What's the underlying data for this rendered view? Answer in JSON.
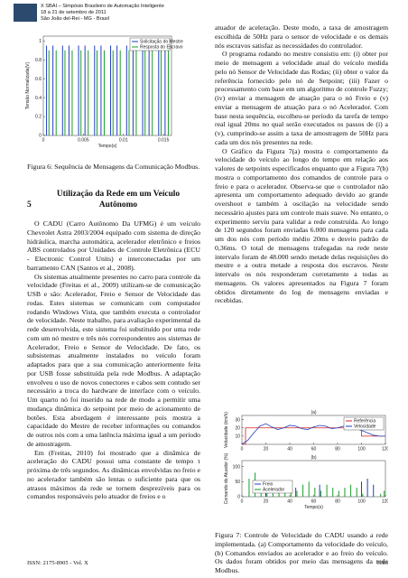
{
  "header": {
    "lines": [
      "X SBAI – Simpósio Brasileiro de Automação Inteligente",
      "18 a 21 de setembro de 2011",
      "São João del-Rei - MG - Brasil"
    ]
  },
  "figure_6": {
    "type": "stem",
    "xlabel": "Tempo(s)",
    "ylabel": "Tensão Normalizada(V)",
    "xlim": [
      0,
      0.016
    ],
    "xticks": [
      0,
      0.005,
      0.01,
      0.015
    ],
    "ylim": [
      0,
      1.05
    ],
    "yticks": [
      0,
      0.2,
      0.4,
      0.6,
      0.8,
      1
    ],
    "legend": "upper right",
    "series": [
      {
        "name": "Solicitação do Mestre",
        "color": "#1f3fbf",
        "x": [
          0.0004,
          0.0012,
          0.0024,
          0.0032,
          0.0044,
          0.0052,
          0.0064,
          0.0072,
          0.0084,
          0.0092,
          0.0104,
          0.0112,
          0.0124,
          0.0132,
          0.0144,
          0.0152
        ],
        "values": [
          0.95,
          0.95,
          0.95,
          0.95,
          0.95,
          0.95,
          0.95,
          0.95,
          0.95,
          0.95,
          0.95,
          0.95,
          0.95,
          0.95,
          0.95,
          0.95
        ]
      },
      {
        "name": "Resposta do Escravo",
        "color": "#1a9e2a",
        "x": [
          0.0007,
          0.0016,
          0.0027,
          0.0036,
          0.0047,
          0.0056,
          0.0067,
          0.0076,
          0.0087,
          0.0096,
          0.0107,
          0.0116,
          0.0127,
          0.0136,
          0.0147,
          0.0156
        ],
        "values": [
          0.9,
          0.9,
          0.9,
          0.9,
          0.9,
          0.9,
          0.9,
          0.9,
          0.9,
          0.9,
          0.9,
          0.9,
          0.9,
          0.9,
          0.9,
          0.9
        ]
      }
    ],
    "caption": "Figura 6: Sequência de Mensagens da Comunicação Modbus."
  },
  "section": {
    "number": "5",
    "title": "Utilização da Rede em um Veículo Autônomo"
  },
  "left_column": {
    "paragraphs": [
      "O CADU (Carro Autônomo Da UFMG) é um veículo Chevrolet Astra 2003/2004 equipado com sistema de direção hidráulica, marcha automática, acelerador eletrônico e freios ABS controlados por Unidades de Controle Eletrônica (ECU - Electronic Control Units) e interconectadas por um barramento CAN (Santos et al., 2008).",
      "Os sistemas atualmente presentes no carro para controle da velocidade (Freitas et al., 2009) utilizam-se de comunicação USB e são: Acelerador, Freio e Sensor de Velocidade das rodas. Estes sistemas se comunicam com computador rodando Windows Vista, que também executa o controlador de velocidade. Neste trabalho, para avaliação experimental da rede desenvolvida, este sistema foi substituído por uma rede com um nó mestre e três nós correspondentes aos sistemas de Acelerador, Freio e Sensor de Velocidade. De fato, os subsistemas atualmente instalados no veículo foram adaptados para que a sua comunicação anteriormente feita por USB fosse substituída pela rede Modbus. A adaptação envolveu o uso de novos conectores e cabos sem contudo ser necessário a troca do hardware de interface com o veículo. Um quarto nó foi inserido na rede de modo a permitir uma mudança dinâmica do setpoint por meio de acionamento de botões. Esta abordagem é interessante pois mostra a capacidade do Mestre de receber informações ou comandos de outros nós com a uma latência máxima igual a um período de amostragem.",
      "Em (Freitas, 2010) foi mostrado que a dinâmica de aceleração do CADU possui uma constante de tempo τ próxima de três segundos. As dinâmicas envolvidas no freio e no acelerador também são lentas o suficiente para que os atrasos máximos da rede se tornem desprezíveis para os comandos responsáveis pelo atuador de freios e o"
    ]
  },
  "right_column": {
    "paragraphs": [
      "atuador de aceleração. Deste modo, a taxa de amostragem escolhida de 50Hz para o sensor de velocidade e os demais nós escravos satisfaz as necessidades do controlador.",
      "O programa rodando no mestre consistiu em: (i) obter por meio de mensagem a velocidade atual do veículo medida pelo nó Sensor de Velocidade das Rodas; (ii) obter o valor da referência fornecido pelo nó de Setpoint; (iii) Fazer o processamento com base em um algoritmo de controle Fuzzy; (iv) enviar a mensagem de atuação para o nó Freio e (v) enviar a mensagem de atuação para o nó Acelerador. Com base nesta sequência, escolheu-se período da tarefa de tempo real igual 20ms no qual serão executados os passos de (i) a (v), cumprindo-se assim a taxa de amostragem de 50Hz para cada um dos nós presentes na rede.",
      "O Gráfico da Figura 7(a) mostra o comportamento da velocidade do veículo ao longo do tempo em relação aos valores de setpoints especificados enquanto que a Figura 7(b) mostra o comportamento dos comandos de controle para o freio e para o acelerador. Observa-se que o controlador não apresenta um comportamento adequado devido ao grande overshoot e também à oscilação na velocidade sendo necessário ajustes para um controle mais suave. No entanto, o experimento serviu para validar a rede construída. Ao longo de 120 segundos foram enviadas 6.000 mensagens para cada um dos nós com período médio 20ms e desvio padrão de 0,36ms. O total de mensagens trafegadas na rede neste intervalo foram de 48.000 sendo metade delas requisições do mestre e a outra metade a resposta dos escravos. Neste intervalo os nós responderam corretamente a todas as mensagens. Os valores apresentados na Figura 7 foram obtidos diretamente do log de mensagens enviadas e recebidas."
    ]
  },
  "figure_7": {
    "panels": [
      {
        "type": "line",
        "title": "(a)",
        "ylabel": "Velocidade (km/h)",
        "xlim": [
          0,
          120
        ],
        "xticks": [
          0,
          20,
          40,
          60,
          80,
          100,
          120
        ],
        "ylim": [
          0,
          35
        ],
        "yticks": [
          10,
          20,
          30
        ],
        "legend": "upper right",
        "series": [
          {
            "name": "Referência",
            "color": "#d62020",
            "x": [
              0,
              3,
              3,
              100,
              100,
              120
            ],
            "values": [
              0,
              0,
              20,
              20,
              10,
              10
            ]
          },
          {
            "name": "Velocidade",
            "color": "#1f3fbf",
            "x": [
              0,
              5,
              10,
              15,
              20,
              25,
              30,
              35,
              40,
              45,
              50,
              55,
              60,
              65,
              70,
              75,
              80,
              85,
              90,
              95,
              100,
              105,
              110,
              115,
              120
            ],
            "values": [
              0,
              5,
              14,
              22,
              25,
              21,
              18,
              20,
              23,
              22,
              19,
              18,
              21,
              23,
              22,
              19,
              20,
              22,
              21,
              19,
              17,
              14,
              11,
              10,
              10
            ]
          }
        ]
      },
      {
        "type": "stem",
        "title": "(b)",
        "xlabel": "Tempo(s)",
        "ylabel": "Comando do Atuador (%)",
        "xlim": [
          0,
          120
        ],
        "xticks": [
          0,
          20,
          40,
          60,
          80,
          100,
          120
        ],
        "ylim": [
          0,
          120
        ],
        "yticks": [
          0,
          50,
          100
        ],
        "legend": "lower left",
        "series": [
          {
            "name": "Freio",
            "color": "#1f3fbf",
            "x": [
              0,
              5,
              10,
              15,
              20,
              25,
              30,
              35,
              40,
              45,
              50,
              55,
              60,
              65,
              70,
              75,
              80,
              85,
              90,
              95,
              100,
              105,
              110,
              115,
              120
            ],
            "values": [
              0,
              0,
              0,
              0,
              20,
              0,
              0,
              0,
              0,
              30,
              0,
              0,
              0,
              40,
              0,
              0,
              0,
              0,
              0,
              0,
              50,
              60,
              40,
              0,
              0
            ]
          },
          {
            "name": "Acelerador",
            "color": "#1a9e2a",
            "x": [
              1,
              6,
              11,
              16,
              21,
              26,
              31,
              36,
              41,
              46,
              51,
              56,
              61,
              66,
              71,
              76,
              81,
              86,
              91,
              96,
              101,
              106,
              111,
              116,
              119
            ],
            "values": [
              0,
              60,
              80,
              40,
              20,
              30,
              50,
              40,
              30,
              20,
              40,
              50,
              30,
              20,
              40,
              30,
              20,
              30,
              40,
              30,
              10,
              0,
              0,
              10,
              20
            ]
          }
        ]
      }
    ],
    "caption": "Figura 7: Controle de Velocidade do CADU usando a rede implementada. (a) Comportamento da velocidade do veículo, (b) Comandos enviados ao acelerador e ao freio do veículo. Os dados foram obtidos por meio das mensagens da rede Modbus."
  },
  "footer": {
    "issn": "ISSN: 2175-8905 - Vol. X",
    "page": "1183"
  }
}
